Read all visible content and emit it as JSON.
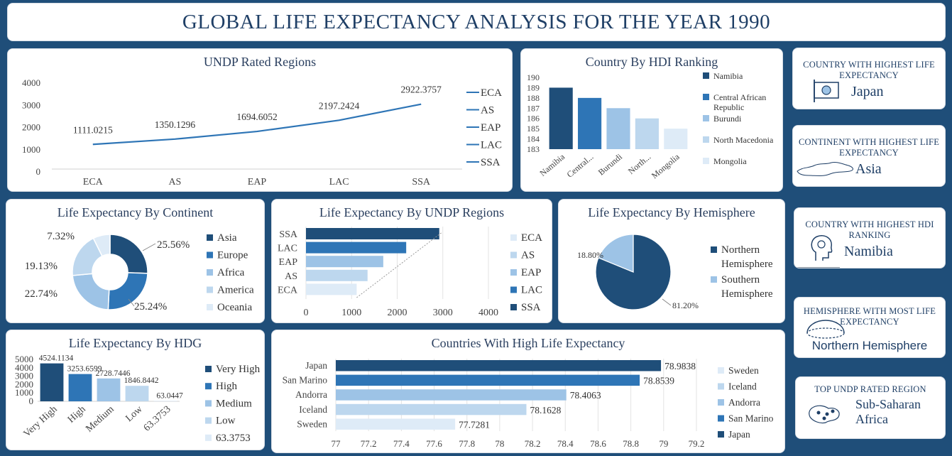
{
  "title": "GLOBAL LIFE EXPECTANCY ANALYSIS FOR THE YEAR 1990",
  "colors": {
    "dark": "#1f4e79",
    "mid": "#2e75b6",
    "light": "#9dc3e6",
    "lighter": "#bdd7ee",
    "lightest": "#deebf7"
  },
  "kpis": [
    {
      "label": "COUNTRY WITH HIGHEST LIFE EXPECTANCY",
      "value": "Japan",
      "icon": "flag-icon"
    },
    {
      "label": "CONTINENT WITH HIGHEST LIFE EXPECTANCY",
      "value": "Asia",
      "icon": "map-icon"
    },
    {
      "label": "COUNTRY WITH HIGHEST HDI RANKING",
      "value": "Namibia",
      "icon": "head-icon"
    },
    {
      "label": "HEMISPHERE WITH MOST LIFE EXPECTANCY",
      "value": "Northern Hemisphere",
      "icon": "hemisphere-icon"
    },
    {
      "label": "TOP UNDP RATED REGION",
      "value": "Sub-Saharan Africa",
      "icon": "region-map-icon"
    }
  ],
  "chart_data": [
    {
      "id": "undp-line",
      "type": "line",
      "title": "UNDP Rated Regions",
      "categories": [
        "ECA",
        "AS",
        "EAP",
        "LAC",
        "SSA"
      ],
      "values": [
        1111.0215,
        1350.1296,
        1694.6052,
        2197.2424,
        2922.3757
      ],
      "value_labels": [
        "1111.0215",
        "1350.1296",
        "1694.6052",
        "2197.2424",
        "2922.3757"
      ],
      "yticks": [
        "0",
        "1000",
        "2000",
        "3000",
        "4000"
      ],
      "ylim": [
        0,
        4000
      ],
      "legend": [
        "ECA",
        "AS",
        "EAP",
        "LAC",
        "SSA"
      ]
    },
    {
      "id": "hdi-bar",
      "type": "bar",
      "title": "Country By HDI Ranking",
      "categories": [
        "Namibia",
        "Central...",
        "Burundi",
        "North...",
        "Mongolia"
      ],
      "values": [
        189,
        188,
        187,
        186,
        185
      ],
      "yticks": [
        "183",
        "184",
        "185",
        "186",
        "187",
        "188",
        "189",
        "190"
      ],
      "ylim": [
        183,
        190
      ],
      "legend": [
        "Namibia",
        "Central African Republic",
        "Burundi",
        "North Macedonia",
        "Mongolia"
      ]
    },
    {
      "id": "continent-donut",
      "type": "pie",
      "title": "Life Expectancy By Continent",
      "categories": [
        "Asia",
        "Europe",
        "Africa",
        "America",
        "Oceania"
      ],
      "values": [
        25.56,
        25.24,
        22.74,
        19.13,
        7.32
      ],
      "value_labels": [
        "25.56%",
        "25.24%",
        "22.74%",
        "19.13%",
        "7.32%"
      ],
      "legend": [
        "Asia",
        "Europe",
        "Africa",
        "America",
        "Oceania"
      ]
    },
    {
      "id": "undp-hbar",
      "type": "bar",
      "title": "Life Expectancy By UNDP Regions",
      "categories": [
        "SSA",
        "LAC",
        "EAP",
        "AS",
        "ECA"
      ],
      "values": [
        2922.3757,
        2197.2424,
        1694.6052,
        1350.1296,
        1111.0215
      ],
      "xticks": [
        "0",
        "1000",
        "2000",
        "3000",
        "4000"
      ],
      "xlim": [
        0,
        4000
      ],
      "legend": [
        "ECA",
        "AS",
        "EAP",
        "LAC",
        "SSA"
      ]
    },
    {
      "id": "hemisphere-pie",
      "type": "pie",
      "title": "Life Expectancy By Hemisphere",
      "categories": [
        "Northern Hemisphere",
        "Southern Hemisphere"
      ],
      "values": [
        81.2,
        18.8
      ],
      "value_labels": [
        "81.20%",
        "18.80%"
      ],
      "legend": [
        [
          "Northern",
          "Hemisphere"
        ],
        [
          "Southern",
          "Hemisphere"
        ]
      ]
    },
    {
      "id": "hdg-bar",
      "type": "bar",
      "title": "Life Expectancy By HDG",
      "categories": [
        "Very High",
        "High",
        "Medium",
        "Low",
        "63.3753"
      ],
      "values": [
        4524.1134,
        3253.6599,
        2728.7446,
        1846.8442,
        63.0447
      ],
      "value_labels": [
        "4524.1134",
        "3253.6599",
        "2728.7446",
        "1846.8442",
        "63.0447"
      ],
      "yticks": [
        "0",
        "1000",
        "2000",
        "3000",
        "4000",
        "5000"
      ],
      "ylim": [
        0,
        5000
      ],
      "legend": [
        "Very High",
        "High",
        "Medium",
        "Low",
        "63.3753"
      ]
    },
    {
      "id": "countries-hbar",
      "type": "bar",
      "title": "Countries With High Life Expectancy",
      "categories": [
        "Japan",
        "San Marino",
        "Andorra",
        "Iceland",
        "Sweden"
      ],
      "values": [
        78.9838,
        78.8539,
        78.4063,
        78.1628,
        77.7281
      ],
      "value_labels": [
        "78.9838",
        "78.8539",
        "78.4063",
        "78.1628",
        "77.7281"
      ],
      "xticks": [
        "77",
        "77.2",
        "77.4",
        "77.6",
        "77.8",
        "78",
        "78.2",
        "78.4",
        "78.6",
        "78.8",
        "79",
        "79.2"
      ],
      "xlim": [
        77,
        79.2
      ],
      "legend": [
        "Sweden",
        "Iceland",
        "Andorra",
        "San Marino",
        "Japan"
      ]
    }
  ]
}
